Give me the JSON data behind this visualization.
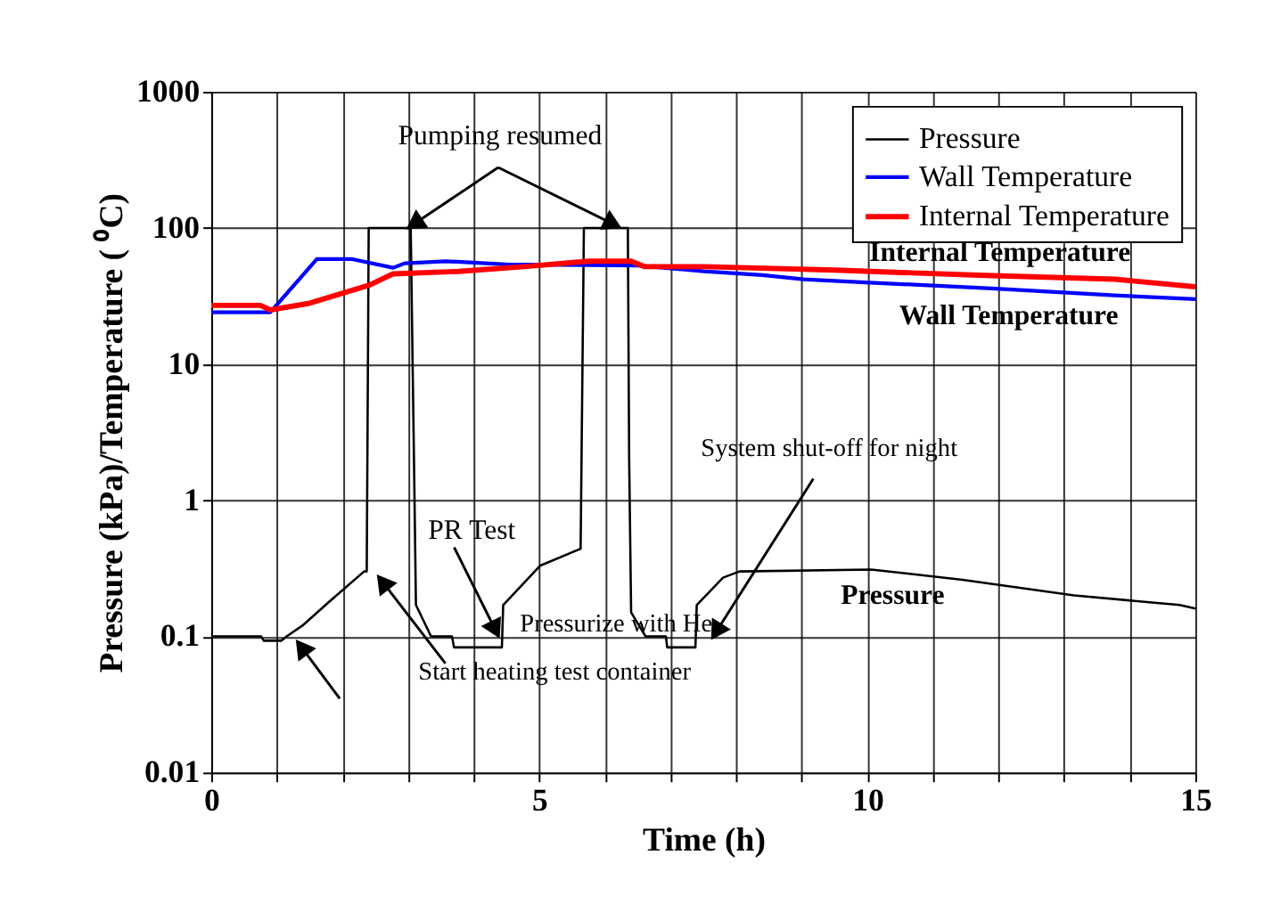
{
  "chart_data": {
    "type": "line",
    "xlabel": "Time (h)",
    "ylabel": "Pressure (kPa)/Temperature ( ⁰C)",
    "log": "y",
    "xlim": [
      0,
      15
    ],
    "ylim": [
      0.01,
      1000
    ],
    "xticks": [
      0,
      {
        "value": 1,
        "label": null
      },
      {
        "value": 2,
        "label": null
      },
      {
        "value": 3,
        "label": null
      },
      {
        "value": 4,
        "label": null
      },
      5,
      {
        "value": 6,
        "label": null
      },
      {
        "value": 7,
        "label": null
      },
      {
        "value": 8,
        "label": null
      },
      {
        "value": 9,
        "label": null
      },
      10,
      {
        "value": 11,
        "label": null
      },
      {
        "value": 12,
        "label": null
      },
      {
        "value": 13,
        "label": null
      },
      {
        "value": 14,
        "label": null
      },
      15
    ],
    "yticks": [
      0.01,
      0.1,
      1,
      10,
      100,
      1000
    ],
    "grid": true,
    "legend": "top right",
    "series": [
      {
        "name": "Pressure",
        "color": "#000000",
        "x": [
          0,
          0.76,
          0.8,
          1.07,
          1.15,
          1.39,
          1.8,
          2.33,
          2.37,
          2.4,
          3.04,
          3.09,
          3.12,
          3.35,
          3.67,
          3.7,
          4.43,
          4.45,
          5.01,
          5.63,
          5.68,
          6.35,
          6.37,
          6.4,
          6.62,
          6.93,
          6.95,
          7.38,
          7.4,
          7.8,
          8.05,
          10.06,
          11.45,
          13.15,
          14.76,
          15
        ],
        "values": [
          0.1,
          0.1,
          0.093,
          0.093,
          0.1,
          0.12,
          0.18,
          0.3,
          0.3,
          100,
          100,
          2,
          0.17,
          0.1,
          0.1,
          0.083,
          0.083,
          0.17,
          0.33,
          0.44,
          100,
          100,
          2,
          0.15,
          0.1,
          0.1,
          0.083,
          0.083,
          0.17,
          0.27,
          0.3,
          0.31,
          0.26,
          0.2,
          0.17,
          0.16
        ]
      },
      {
        "name": "Wall Temperature",
        "color": "#0000ff",
        "x": [
          0,
          0.9,
          1.61,
          2.15,
          2.77,
          2.95,
          3.57,
          4.5,
          6.5,
          7.51,
          8.4,
          9.03,
          9.9,
          11.9,
          13.77,
          15
        ],
        "values": [
          24,
          24,
          59,
          59,
          51,
          55,
          57,
          54,
          53,
          48,
          45,
          42,
          40,
          36,
          32,
          30
        ]
      },
      {
        "name": "Internal Temperature",
        "color": "#ff0000",
        "x": [
          0,
          0.75,
          0.9,
          1.5,
          2.41,
          2.77,
          3.77,
          4.77,
          5.75,
          6.4,
          6.6,
          7.51,
          9.5,
          11.7,
          13.77,
          15
        ],
        "values": [
          27,
          27,
          25,
          28,
          38,
          46,
          48,
          52,
          57,
          57,
          52,
          52,
          49,
          45,
          42,
          37
        ]
      }
    ],
    "annotations": [
      {
        "text": "Pumping resumed",
        "x": 3.0,
        "y": 100
      },
      {
        "text": "PR Test",
        "x": 4.38,
        "y": 0.1
      },
      "Pressurize with He",
      "Start heating test container",
      "System shut-off for night",
      "Internal Temperature",
      "Wall Temperature",
      "Pressure"
    ]
  }
}
